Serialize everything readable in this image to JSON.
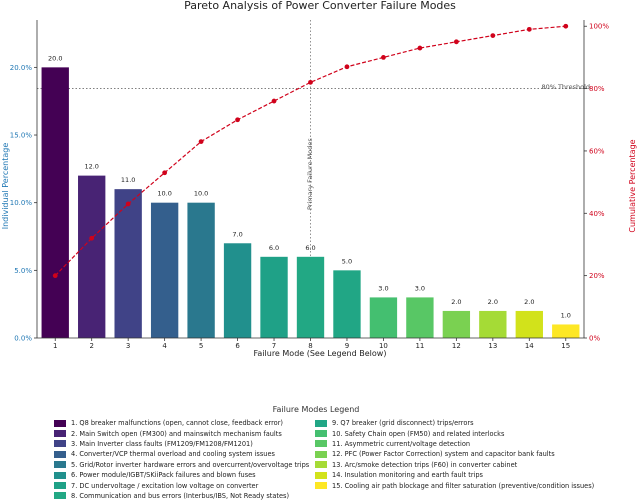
{
  "chart_data": {
    "type": "bar",
    "title": "Pareto Analysis of Power Converter Failure Modes",
    "xlabel": "Failure Mode (See Legend Below)",
    "ylabel": "Individual Percentage",
    "y2label": "Cumulative Percentage",
    "categories": [
      "1",
      "2",
      "3",
      "4",
      "5",
      "6",
      "7",
      "8",
      "9",
      "10",
      "11",
      "12",
      "13",
      "14",
      "15"
    ],
    "values": [
      20.0,
      12.0,
      11.0,
      10.0,
      10.0,
      7.0,
      6.0,
      6.0,
      5.0,
      3.0,
      3.0,
      2.0,
      2.0,
      2.0,
      1.0
    ],
    "value_labels": [
      "20.0",
      "12.0",
      "11.0",
      "10.0",
      "10.0",
      "7.0",
      "6.0",
      "6.0",
      "5.0",
      "3.0",
      "3.0",
      "2.0",
      "2.0",
      "2.0",
      "1.0"
    ],
    "cumulative": [
      20,
      32,
      43,
      53,
      63,
      70,
      76,
      82,
      87,
      90,
      93,
      95,
      97,
      99,
      100
    ],
    "ylim": [
      0,
      23.5
    ],
    "y_ticks": [
      0,
      5,
      10,
      15,
      20
    ],
    "y_tick_labels": [
      "0.0%",
      "5.0%",
      "10.0%",
      "15.0%",
      "20.0%"
    ],
    "y2lim": [
      0,
      102
    ],
    "y2_ticks": [
      0,
      20,
      40,
      60,
      80,
      100
    ],
    "y2_tick_labels": [
      "0%",
      "20%",
      "40%",
      "60%",
      "80%",
      "100%"
    ],
    "threshold": 80,
    "threshold_label": "80% Threshold",
    "primary_boundary": 8,
    "primary_label": "Primary Failure Modes",
    "colors": [
      "#440154",
      "#482374",
      "#404387",
      "#345f8d",
      "#2a788e",
      "#21908d",
      "#20a386",
      "#22a884",
      "#25ab82",
      "#44bf70",
      "#58c765",
      "#7ad151",
      "#a5db36",
      "#d2e21b",
      "#fde725"
    ],
    "bar_color_hex": [
      "#440154",
      "#482374",
      "#404387",
      "#345f8d",
      "#2a788e",
      "#21908d",
      "#1fa187",
      "#22a884",
      "#21a685",
      "#44bf70",
      "#58c765",
      "#7ad151",
      "#a5db36",
      "#d2e21b",
      "#fde725"
    ],
    "line_color": "#d0021b",
    "axis_left_color": "#1f77b4",
    "axis_right_color": "#d0021b"
  },
  "legend": {
    "title": "Failure Modes Legend",
    "items": [
      "1. Q8 breaker malfunctions (open, cannot close, feedback error)",
      "2. Main Switch open (FM300) and mainswitch mechanism faults",
      "3. Main Inverter class faults (FM1209/FM1208/FM1201)",
      "4. Converter/VCP thermal overload and cooling system issues",
      "5. Grid/Rotor inverter hardware errors and overcurrent/overvoltage trips",
      "6. Power module/IGBT/SKiiPack failures and blown fuses",
      "7. DC undervoltage / excitation low voltage on converter",
      "8. Communication and bus errors (Interbus/IBS, Not Ready states)",
      "9. Q7 breaker (grid disconnect) trips/errors",
      "10. Safety Chain open (FM50) and related interlocks",
      "11. Asymmetric current/voltage detection",
      "12. PFC (Power Factor Correction) system and capacitor bank faults",
      "13. Arc/smoke detection trips (F60) in converter cabinet",
      "14. Insulation monitoring and earth fault trips",
      "15. Cooling air path blockage and filter saturation (preventive/condition issues)"
    ]
  }
}
